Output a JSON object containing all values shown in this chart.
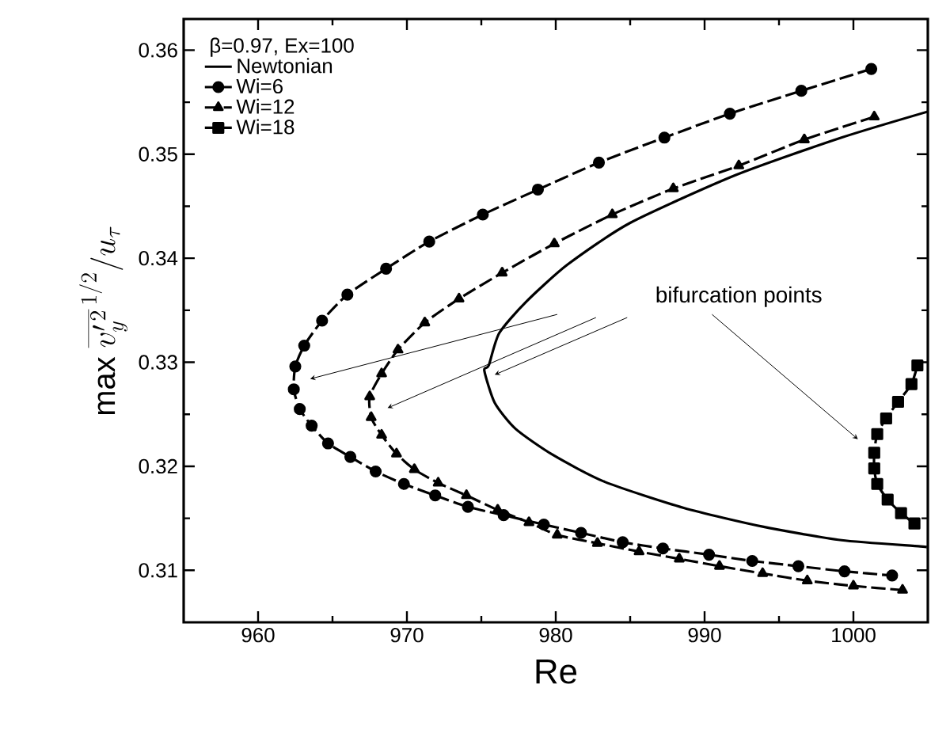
{
  "chart_data": {
    "type": "line",
    "xlabel": "Re",
    "ylabel": "\\mathrm{max}\\ \\overline{v'^{\\,2}_{y}}^{\\,1/2}/u_{\\tau}",
    "xlim": [
      955,
      1005
    ],
    "ylim": [
      0.305,
      0.363
    ],
    "xticks": [
      960,
      970,
      980,
      990,
      1000
    ],
    "yticks": [
      0.31,
      0.32,
      0.33,
      0.34,
      0.35,
      0.36
    ],
    "legend": "top left",
    "legend_title": "β=0.97, Ex=100",
    "grid": false,
    "annotations": [
      "bifurcation points"
    ],
    "series": [
      {
        "name": "Newtonian",
        "color": "#000000",
        "marker": "none",
        "line_style": "solid",
        "x": [
          1005,
          999.2,
          992.1,
          985.0,
          980.8,
          978.0,
          976.2,
          975.5,
          975.2,
          975.9,
          977.3,
          979.8,
          983.3,
          988.6,
          993.9,
          999.2,
          1004.5,
          1005
        ],
        "values": [
          0.3541,
          0.3516,
          0.348,
          0.3434,
          0.3394,
          0.3358,
          0.3328,
          0.3297,
          0.3292,
          0.3261,
          0.3236,
          0.3211,
          0.3185,
          0.316,
          0.3142,
          0.3129,
          0.3123,
          0.3122
        ]
      },
      {
        "name": "Wi=6",
        "color": "#000000",
        "marker": "circle",
        "line_style": "dashed",
        "x": [
          1001.2,
          996.5,
          991.7,
          987.3,
          982.9,
          978.8,
          975.1,
          971.5,
          968.6,
          966.0,
          964.3,
          963.1,
          962.5,
          962.4,
          962.8,
          963.6,
          964.7,
          966.2,
          967.9,
          969.8,
          971.9,
          974.1,
          976.5,
          979.2,
          981.7,
          984.5,
          987.2,
          990.3,
          993.2,
          996.3,
          999.4,
          1002.6
        ],
        "values": [
          0.3582,
          0.3561,
          0.3539,
          0.3516,
          0.3492,
          0.3466,
          0.3442,
          0.3416,
          0.339,
          0.3365,
          0.334,
          0.3316,
          0.3296,
          0.3274,
          0.3255,
          0.3239,
          0.3222,
          0.3209,
          0.3195,
          0.3183,
          0.3172,
          0.3161,
          0.3153,
          0.3144,
          0.3136,
          0.3127,
          0.3121,
          0.3115,
          0.3109,
          0.3104,
          0.3099,
          0.3095
        ]
      },
      {
        "name": "Wi=12",
        "color": "#000000",
        "marker": "triangle",
        "line_style": "dashed",
        "x": [
          1001.4,
          996.7,
          992.3,
          987.9,
          983.8,
          979.9,
          976.4,
          973.5,
          971.2,
          969.4,
          968.3,
          967.5,
          967.6,
          968.3,
          969.3,
          970.5,
          972.1,
          974.0,
          976.1,
          978.2,
          980.1,
          982.8,
          985.6,
          988.3,
          991.0,
          993.9,
          996.9,
          1000.0,
          1003.3
        ],
        "values": [
          0.3536,
          0.3514,
          0.3489,
          0.3467,
          0.3442,
          0.3414,
          0.3386,
          0.3361,
          0.3338,
          0.3312,
          0.3289,
          0.3267,
          0.3247,
          0.323,
          0.3212,
          0.3197,
          0.3184,
          0.3172,
          0.3158,
          0.3146,
          0.3134,
          0.3126,
          0.3118,
          0.3111,
          0.3104,
          0.3097,
          0.309,
          0.3085,
          0.3081
        ]
      },
      {
        "name": "Wi=18",
        "color": "#000000",
        "marker": "square",
        "line_style": "dashed",
        "x": [
          1004.3,
          1003.9,
          1003.0,
          1002.2,
          1001.6,
          1001.4,
          1001.4,
          1001.6,
          1002.3,
          1003.2,
          1004.1
        ],
        "values": [
          0.3297,
          0.3279,
          0.3262,
          0.3246,
          0.3231,
          0.3213,
          0.3198,
          0.3183,
          0.3168,
          0.3155,
          0.3145
        ]
      }
    ]
  }
}
